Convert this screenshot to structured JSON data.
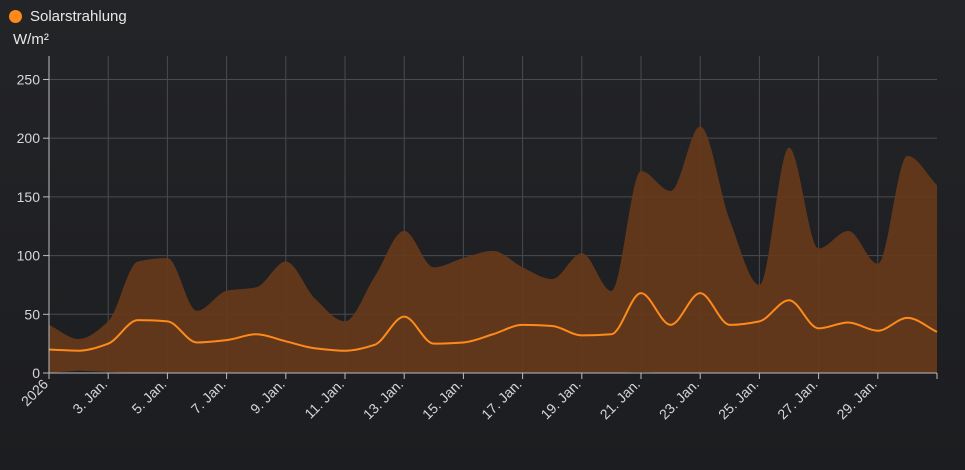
{
  "legend": {
    "series_label": "Solarstrahlung",
    "unit": "W/m²"
  },
  "colors": {
    "series_line": "#ff8a1c",
    "band_fill": "#64391a",
    "grid": "#4a4b4f",
    "axis": "#bdbdbd",
    "background": "#1e1f22"
  },
  "chart_data": {
    "type": "line",
    "ylabel": "W/m²",
    "ylim": [
      0,
      270
    ],
    "yticks": [
      0,
      50,
      100,
      150,
      200,
      250
    ],
    "xlim": [
      1,
      31
    ],
    "xticks": [
      {
        "day": 1,
        "label": "2026"
      },
      {
        "day": 3,
        "label": "3. Jan."
      },
      {
        "day": 5,
        "label": "5. Jan."
      },
      {
        "day": 7,
        "label": "7. Jan."
      },
      {
        "day": 9,
        "label": "9. Jan."
      },
      {
        "day": 11,
        "label": "11. Jan."
      },
      {
        "day": 13,
        "label": "13. Jan."
      },
      {
        "day": 15,
        "label": "15. Jan."
      },
      {
        "day": 17,
        "label": "17. Jan."
      },
      {
        "day": 19,
        "label": "19. Jan."
      },
      {
        "day": 21,
        "label": "21. Jan."
      },
      {
        "day": 23,
        "label": "23. Jan."
      },
      {
        "day": 25,
        "label": "25. Jan."
      },
      {
        "day": 27,
        "label": "27. Jan."
      },
      {
        "day": 29,
        "label": "29. Jan."
      }
    ],
    "grid": true,
    "legend_position": "top-left",
    "series": [
      {
        "name": "Solarstrahlung",
        "kind": "mean",
        "points": [
          [
            1,
            20
          ],
          [
            2,
            19
          ],
          [
            3,
            25
          ],
          [
            4,
            45
          ],
          [
            5,
            44
          ],
          [
            6,
            26
          ],
          [
            7,
            28
          ],
          [
            8,
            33
          ],
          [
            9,
            27
          ],
          [
            10,
            21
          ],
          [
            11,
            19
          ],
          [
            12,
            24
          ],
          [
            13,
            48
          ],
          [
            14,
            25
          ],
          [
            15,
            26
          ],
          [
            16,
            33
          ],
          [
            17,
            41
          ],
          [
            18,
            40
          ],
          [
            19,
            32
          ],
          [
            20,
            33
          ],
          [
            21,
            68
          ],
          [
            22,
            41
          ],
          [
            23,
            68
          ],
          [
            24,
            41
          ],
          [
            25,
            44
          ],
          [
            26,
            62
          ],
          [
            27,
            38
          ],
          [
            28,
            43
          ],
          [
            29,
            36
          ],
          [
            30,
            47
          ],
          [
            31,
            35
          ]
        ]
      },
      {
        "kind": "max",
        "points": [
          [
            1,
            41
          ],
          [
            2,
            29
          ],
          [
            3,
            44
          ],
          [
            4,
            95
          ],
          [
            5,
            98
          ],
          [
            6,
            53
          ],
          [
            7,
            70
          ],
          [
            8,
            73
          ],
          [
            9,
            95
          ],
          [
            10,
            63
          ],
          [
            11,
            44
          ],
          [
            12,
            82
          ],
          [
            13,
            121
          ],
          [
            14,
            90
          ],
          [
            15,
            98
          ],
          [
            16,
            104
          ],
          [
            17,
            90
          ],
          [
            18,
            80
          ],
          [
            19,
            102
          ],
          [
            20,
            70
          ],
          [
            21,
            172
          ],
          [
            22,
            155
          ],
          [
            23,
            210
          ],
          [
            24,
            130
          ],
          [
            25,
            75
          ],
          [
            26,
            192
          ],
          [
            27,
            106
          ],
          [
            28,
            121
          ],
          [
            29,
            93
          ],
          [
            30,
            185
          ],
          [
            31,
            160
          ]
        ]
      },
      {
        "kind": "min",
        "points": [
          [
            1,
            0
          ],
          [
            2,
            2
          ],
          [
            3,
            1
          ],
          [
            4,
            0
          ],
          [
            5,
            0
          ],
          [
            6,
            0
          ],
          [
            7,
            0
          ],
          [
            8,
            0
          ],
          [
            9,
            0
          ],
          [
            10,
            0
          ],
          [
            11,
            0
          ],
          [
            12,
            0
          ],
          [
            13,
            0
          ],
          [
            14,
            0
          ],
          [
            15,
            0
          ],
          [
            16,
            0
          ],
          [
            17,
            0
          ],
          [
            18,
            0
          ],
          [
            19,
            0
          ],
          [
            20,
            0
          ],
          [
            21,
            1
          ],
          [
            22,
            0
          ],
          [
            23,
            0
          ],
          [
            24,
            0
          ],
          [
            25,
            0
          ],
          [
            26,
            0
          ],
          [
            27,
            0
          ],
          [
            28,
            0
          ],
          [
            29,
            0
          ],
          [
            30,
            0
          ],
          [
            31,
            0
          ]
        ]
      }
    ]
  }
}
